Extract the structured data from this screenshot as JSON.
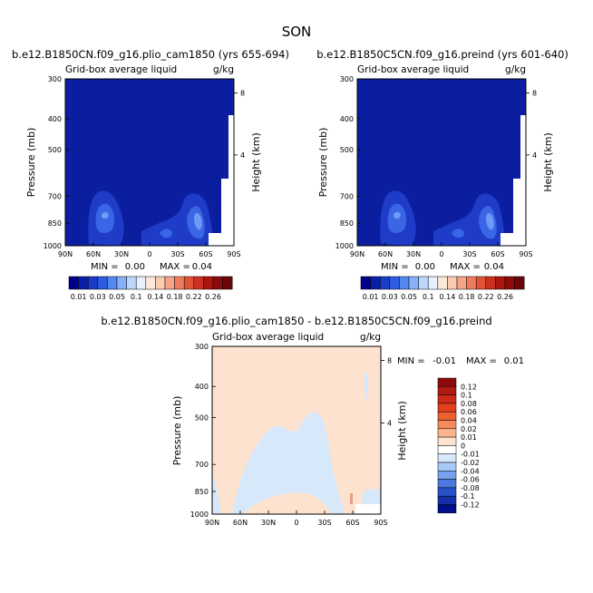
{
  "figure": {
    "title": "SON",
    "colors": {
      "panel_fill": "#0b1ea0",
      "shade_1": "#1e3cc8",
      "shade_2": "#3a66e6",
      "shade_3": "#6f9af6",
      "diff_positive": "#fde3cf",
      "diff_negative": "#d7e8fb",
      "diff_strong_positive": "#e8a080"
    }
  },
  "chart_data": [
    {
      "type": "heatmap",
      "title": "b.e12.B1850CN.f09_g16.plio_cam1850 (yrs 655-694)",
      "subtitle": "Grid-box average liquid",
      "units": "g/kg",
      "ylabel": "Pressure (mb)",
      "ylabel_right": "Height (km)",
      "x_ticks": [
        "90N",
        "60N",
        "30N",
        "0",
        "30S",
        "60S",
        "90S"
      ],
      "y_ticks": [
        "300",
        "400",
        "500",
        "700",
        "850",
        "1000"
      ],
      "y_right_ticks": [
        "8",
        "4"
      ],
      "stats": {
        "min_label": "MIN =",
        "min": "0.00",
        "max_label": "MAX =",
        "max": "0.04"
      },
      "colorbar": {
        "labels": [
          "0.01",
          "0.03",
          "0.05",
          "0.1",
          "0.14",
          "0.18",
          "0.22",
          "0.26"
        ],
        "colors": [
          "#00008c",
          "#0a1fa8",
          "#1a3cc6",
          "#2c5ce0",
          "#5388f0",
          "#86b0fa",
          "#bcd6fc",
          "#e6f0fe",
          "#fde8d8",
          "#fbcbb0",
          "#f6a486",
          "#ee7c5c",
          "#e05436",
          "#cc3020",
          "#ad1610",
          "#8c0a0a",
          "#6c0606"
        ]
      }
    },
    {
      "type": "heatmap",
      "title": "b.e12.B1850C5CN.f09_g16.preind (yrs 601-640)",
      "subtitle": "Grid-box average liquid",
      "units": "g/kg",
      "ylabel": "Pressure (mb)",
      "ylabel_right": "Height (km)",
      "x_ticks": [
        "90N",
        "60N",
        "30N",
        "0",
        "30S",
        "60S",
        "90S"
      ],
      "y_ticks": [
        "300",
        "400",
        "500",
        "700",
        "850",
        "1000"
      ],
      "y_right_ticks": [
        "8",
        "4"
      ],
      "stats": {
        "min_label": "MIN =",
        "min": "0.00",
        "max_label": "MAX =",
        "max": "0.04"
      },
      "colorbar": {
        "labels": [
          "0.01",
          "0.03",
          "0.05",
          "0.1",
          "0.14",
          "0.18",
          "0.22",
          "0.26"
        ],
        "colors": [
          "#00008c",
          "#0a1fa8",
          "#1a3cc6",
          "#2c5ce0",
          "#5388f0",
          "#86b0fa",
          "#bcd6fc",
          "#e6f0fe",
          "#fde8d8",
          "#fbcbb0",
          "#f6a486",
          "#ee7c5c",
          "#e05436",
          "#cc3020",
          "#ad1610",
          "#8c0a0a",
          "#6c0606"
        ]
      }
    },
    {
      "type": "heatmap",
      "title": "b.e12.B1850CN.f09_g16.plio_cam1850 - b.e12.B1850C5CN.f09_g16.preind",
      "subtitle": "Grid-box average liquid",
      "units": "g/kg",
      "ylabel": "Pressure (mb)",
      "ylabel_right": "Height (km)",
      "x_ticks": [
        "90N",
        "60N",
        "30N",
        "0",
        "30S",
        "60S",
        "90S"
      ],
      "y_ticks": [
        "300",
        "400",
        "500",
        "700",
        "850",
        "1000"
      ],
      "y_right_ticks": [
        "8",
        "4"
      ],
      "stats": {
        "min_label": "MIN =",
        "min": "-0.01",
        "max_label": "MAX =",
        "max": "0.01"
      },
      "colorbar": {
        "labels": [
          "0.12",
          "0.1",
          "0.08",
          "0.06",
          "0.04",
          "0.02",
          "0.01",
          "0",
          "-0.01",
          "-0.02",
          "-0.04",
          "-0.06",
          "-0.08",
          "-0.1",
          "-0.12"
        ],
        "colors": [
          "#8c0a0a",
          "#b01a14",
          "#cc2a1a",
          "#e0401c",
          "#ee6030",
          "#f58a5c",
          "#fbb58e",
          "#fde3cf",
          "#ffffff",
          "#d7e8fb",
          "#a8c8f6",
          "#78a2ee",
          "#4c78e0",
          "#2850c8",
          "#1430a8",
          "#00108c"
        ]
      }
    }
  ]
}
